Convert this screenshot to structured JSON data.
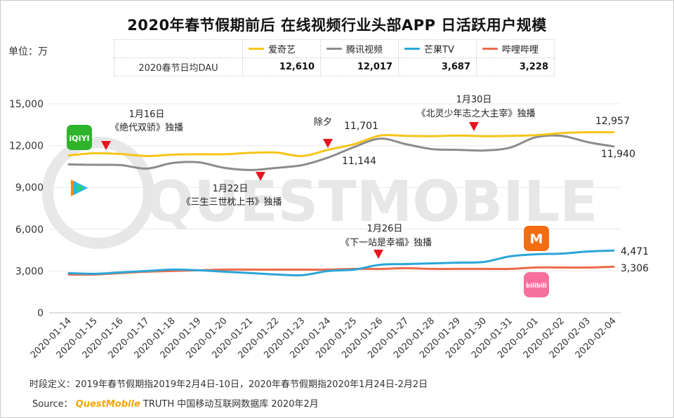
{
  "title": "2020年春节假期前后 在线视频行业头部APP 日活跃用户规模",
  "unit": "单位：万",
  "table": {
    "row_label": "2020春节日均DAU",
    "entries": [
      {
        "name": "爱奇艺",
        "value": "12,610",
        "color": "#f5c518"
      },
      {
        "name": "腾讯视频",
        "value": "12,017",
        "color": "#8c8c8c"
      },
      {
        "name": "芒果TV",
        "value": "3,687",
        "color": "#2aa6d8"
      },
      {
        "name": "哔哩哔哩",
        "value": "3,228",
        "color": "#ec6a4a"
      }
    ]
  },
  "watermark": "QUESTMOBILE",
  "logos": {
    "iqiyi": "iQIYI",
    "mango": "M",
    "bilibili": "bilibili"
  },
  "annotations": [
    {
      "date": "1月16日",
      "text": "《绝代双骄》独播"
    },
    {
      "date": "1月22日",
      "text": "《三生三世枕上书》独播"
    },
    {
      "date": "除夕",
      "text": ""
    },
    {
      "date": "1月26日",
      "text": "《下一站是幸福》独播"
    },
    {
      "date": "1月30日",
      "text": "《北灵少年志之大主宰》独播"
    }
  ],
  "footnote": "时段定义：2019年春节假期指2019年2月4日-10日，2020年春节假期指2020年1月24日-2月2日",
  "source": {
    "label": "Source：",
    "brand": "QuestMobile",
    "rest": " TRUTH 中国移动互联网数据库 2020年2月"
  },
  "chart_data": {
    "type": "line",
    "title": "2020年春节假期前后 在线视频行业头部APP 日活跃用户规模",
    "ylabel": "单位：万",
    "ylim": [
      0,
      15000
    ],
    "yticks": [
      0,
      3000,
      6000,
      9000,
      12000,
      15000
    ],
    "ytick_labels": [
      "0",
      "3,000",
      "6,000",
      "9,000",
      "12,000",
      "15,000"
    ],
    "categories": [
      "2020-01-14",
      "2020-01-15",
      "2020-01-16",
      "2020-01-17",
      "2020-01-18",
      "2020-01-19",
      "2020-01-20",
      "2020-01-21",
      "2020-01-22",
      "2020-01-23",
      "2020-01-24",
      "2020-01-25",
      "2020-01-26",
      "2020-01-27",
      "2020-01-28",
      "2020-01-29",
      "2020-01-30",
      "2020-01-31",
      "2020-02-01",
      "2020-02-02",
      "2020-02-03",
      "2020-02-04"
    ],
    "series": [
      {
        "name": "爱奇艺",
        "color": "#f5c518",
        "values": [
          11300,
          11450,
          11400,
          11250,
          11350,
          11380,
          11380,
          11480,
          11500,
          11250,
          11701,
          12100,
          12720,
          12700,
          12680,
          12720,
          12680,
          12700,
          12750,
          12900,
          12960,
          12957
        ]
      },
      {
        "name": "腾讯视频",
        "color": "#8c8c8c",
        "values": [
          10650,
          10620,
          10600,
          10350,
          10750,
          10800,
          10400,
          10250,
          10400,
          10600,
          11144,
          11900,
          12500,
          12100,
          11750,
          11700,
          11650,
          11850,
          12600,
          12700,
          12250,
          11940
        ]
      },
      {
        "name": "芒果TV",
        "color": "#2aa6d8",
        "values": [
          2850,
          2800,
          2900,
          3000,
          3100,
          3050,
          2950,
          2850,
          2750,
          2700,
          3000,
          3100,
          3450,
          3500,
          3550,
          3600,
          3650,
          4050,
          4200,
          4250,
          4400,
          4471
        ]
      },
      {
        "name": "哔哩哔哩",
        "color": "#ec6a4a",
        "values": [
          2750,
          2750,
          2850,
          2950,
          3000,
          3050,
          3100,
          3100,
          3100,
          3100,
          3100,
          3150,
          3150,
          3200,
          3150,
          3150,
          3150,
          3150,
          3250,
          3250,
          3250,
          3306
        ]
      }
    ],
    "data_labels": [
      {
        "series": "爱奇艺",
        "date": "2020-01-24",
        "value": 11701,
        "text": "11,701"
      },
      {
        "series": "腾讯视频",
        "date": "2020-01-24",
        "value": 11144,
        "text": "11,144"
      },
      {
        "series": "爱奇艺",
        "date": "2020-02-04",
        "value": 12957,
        "text": "12,957"
      },
      {
        "series": "腾讯视频",
        "date": "2020-02-04",
        "value": 11940,
        "text": "11,940"
      },
      {
        "series": "芒果TV",
        "date": "2020-02-04",
        "value": 4471,
        "text": "4,471"
      },
      {
        "series": "哔哩哔哩",
        "date": "2020-02-04",
        "value": 3306,
        "text": "3,306"
      }
    ]
  }
}
